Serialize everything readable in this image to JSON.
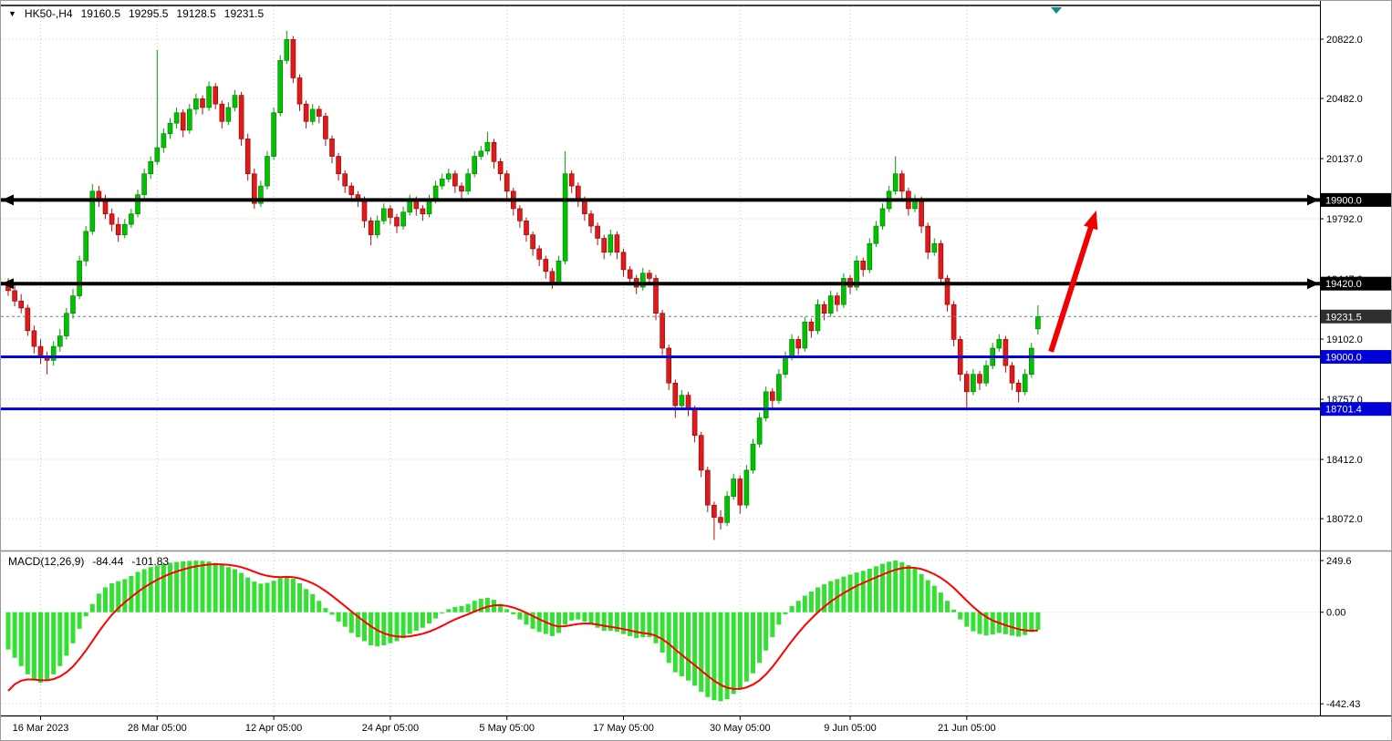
{
  "header": {
    "symbol": "HK50-,H4",
    "open": "19160.5",
    "high": "19295.5",
    "low": "19128.5",
    "close": "19231.5"
  },
  "indicator": {
    "name": "MACD(12,26,9)",
    "main_value": "-84.44",
    "signal_value": "-101.83"
  },
  "colors": {
    "up_candle": "#00C200",
    "up_border": "#007700",
    "down_candle": "#DE1A1A",
    "down_border": "#8E0000",
    "wick_up": "#00A000",
    "wick_down": "#B01010",
    "macd_histogram": "#33E033",
    "macd_signal": "#FF0000",
    "grid": "#C9C9C9",
    "axis_text": "#000000",
    "frame": "#000000",
    "splitter": "#8C8C8C",
    "blue_line": "#0000D8",
    "black_line": "#000000",
    "current_price_line": "#777777",
    "current_price_tag_bg": "#2F2F2F",
    "trend_arrow": "#F00000",
    "shift_marker": "#0E8C8C",
    "tag_text": "#FFFFFF"
  },
  "chart_data": [
    {
      "type": "candlestick",
      "title": "HK50-,H4",
      "ylim": [
        17900,
        21010
      ],
      "y_ticks": [
        "20822.0",
        "20482.0",
        "20137.0",
        "19792.0",
        "19447.0",
        "19102.0",
        "18757.0",
        "18412.0",
        "18072.0"
      ],
      "x_ticks": [
        {
          "i": 5,
          "label": "16 Mar 2023"
        },
        {
          "i": 23,
          "label": "28 Mar 05:00"
        },
        {
          "i": 41,
          "label": "12 Apr 05:00"
        },
        {
          "i": 59,
          "label": "24 Apr 05:00"
        },
        {
          "i": 77,
          "label": "5 May 05:00"
        },
        {
          "i": 95,
          "label": "17 May 05:00"
        },
        {
          "i": 113,
          "label": "30 May 05:00"
        },
        {
          "i": 130,
          "label": "9 Jun 05:00"
        },
        {
          "i": 148,
          "label": "21 Jun 05:00"
        }
      ],
      "hlines": [
        {
          "price": 19900.0,
          "label": "19900.0",
          "kind": "black",
          "width": 4,
          "arrows": true
        },
        {
          "price": 19420.0,
          "label": "19420.0",
          "kind": "black",
          "width": 4,
          "arrows": true
        },
        {
          "price": 19000.0,
          "label": "19000.0",
          "kind": "blue",
          "width": 3,
          "arrows": false
        },
        {
          "price": 18701.4,
          "label": "18701.4",
          "kind": "blue",
          "width": 3,
          "arrows": false
        },
        {
          "price": 19231.5,
          "label": "19231.5",
          "kind": "current",
          "width": 1,
          "arrows": false
        }
      ],
      "trend_arrow": {
        "from": {
          "i": 161,
          "price": 19030
        },
        "to": {
          "i": 168,
          "price": 19840
        },
        "width": 6
      },
      "ohlc": [
        [
          19420,
          19450,
          19350,
          19380
        ],
        [
          19380,
          19410,
          19290,
          19320
        ],
        [
          19320,
          19360,
          19250,
          19280
        ],
        [
          19280,
          19300,
          19120,
          19150
        ],
        [
          19150,
          19180,
          19020,
          19060
        ],
        [
          19060,
          19100,
          18960,
          19000
        ],
        [
          19000,
          19030,
          18900,
          18980
        ],
        [
          18980,
          19090,
          18950,
          19060
        ],
        [
          19060,
          19160,
          19030,
          19120
        ],
        [
          19120,
          19280,
          19100,
          19250
        ],
        [
          19250,
          19390,
          19220,
          19350
        ],
        [
          19350,
          19580,
          19330,
          19550
        ],
        [
          19550,
          19750,
          19520,
          19720
        ],
        [
          19720,
          19990,
          19700,
          19950
        ],
        [
          19950,
          19980,
          19860,
          19900
        ],
        [
          19900,
          19930,
          19790,
          19820
        ],
        [
          19820,
          19850,
          19720,
          19760
        ],
        [
          19760,
          19800,
          19660,
          19700
        ],
        [
          19700,
          19790,
          19680,
          19760
        ],
        [
          19760,
          19850,
          19740,
          19820
        ],
        [
          19820,
          19960,
          19800,
          19930
        ],
        [
          19930,
          20080,
          19910,
          20050
        ],
        [
          20050,
          20150,
          20020,
          20120
        ],
        [
          20120,
          20760,
          20100,
          20200
        ],
        [
          20200,
          20310,
          20170,
          20280
        ],
        [
          20280,
          20370,
          20250,
          20340
        ],
        [
          20340,
          20430,
          20310,
          20400
        ],
        [
          20400,
          20420,
          20260,
          20300
        ],
        [
          20300,
          20450,
          20280,
          20420
        ],
        [
          20420,
          20510,
          20390,
          20480
        ],
        [
          20480,
          20500,
          20390,
          20430
        ],
        [
          20430,
          20580,
          20410,
          20550
        ],
        [
          20550,
          20570,
          20420,
          20450
        ],
        [
          20450,
          20470,
          20310,
          20350
        ],
        [
          20350,
          20460,
          20330,
          20430
        ],
        [
          20430,
          20530,
          20410,
          20500
        ],
        [
          20500,
          20520,
          20210,
          20250
        ],
        [
          20250,
          20280,
          20010,
          20050
        ],
        [
          20050,
          20080,
          19850,
          19880
        ],
        [
          19880,
          20010,
          19860,
          19980
        ],
        [
          19980,
          20180,
          19960,
          20150
        ],
        [
          20150,
          20430,
          20130,
          20400
        ],
        [
          20400,
          20730,
          20380,
          20700
        ],
        [
          20700,
          20870,
          20680,
          20820
        ],
        [
          20820,
          20840,
          20570,
          20600
        ],
        [
          20600,
          20620,
          20410,
          20450
        ],
        [
          20450,
          20470,
          20310,
          20350
        ],
        [
          20350,
          20450,
          20330,
          20420
        ],
        [
          20420,
          20440,
          20340,
          20380
        ],
        [
          20380,
          20400,
          20210,
          20250
        ],
        [
          20250,
          20270,
          20110,
          20150
        ],
        [
          20150,
          20170,
          20010,
          20050
        ],
        [
          20050,
          20070,
          19940,
          19980
        ],
        [
          19980,
          20000,
          19890,
          19930
        ],
        [
          19930,
          19950,
          19860,
          19900
        ],
        [
          19900,
          19920,
          19740,
          19780
        ],
        [
          19780,
          19800,
          19640,
          19700
        ],
        [
          19700,
          19810,
          19680,
          19780
        ],
        [
          19780,
          19880,
          19760,
          19850
        ],
        [
          19850,
          19870,
          19760,
          19800
        ],
        [
          19800,
          19820,
          19710,
          19750
        ],
        [
          19750,
          19860,
          19730,
          19830
        ],
        [
          19830,
          19930,
          19810,
          19900
        ],
        [
          19900,
          19920,
          19810,
          19850
        ],
        [
          19850,
          19870,
          19780,
          19820
        ],
        [
          19820,
          19930,
          19800,
          19900
        ],
        [
          19900,
          20010,
          19880,
          19980
        ],
        [
          19980,
          20050,
          19960,
          20020
        ],
        [
          20020,
          20080,
          20000,
          20050
        ],
        [
          20050,
          20070,
          19940,
          19980
        ],
        [
          19980,
          20000,
          19910,
          19950
        ],
        [
          19950,
          20080,
          19930,
          20050
        ],
        [
          20050,
          20180,
          20030,
          20150
        ],
        [
          20150,
          20210,
          20130,
          20180
        ],
        [
          20180,
          20290,
          20160,
          20230
        ],
        [
          20230,
          20250,
          20080,
          20120
        ],
        [
          20120,
          20140,
          20010,
          20050
        ],
        [
          20050,
          20070,
          19910,
          19950
        ],
        [
          19950,
          19970,
          19810,
          19850
        ],
        [
          19850,
          19870,
          19740,
          19780
        ],
        [
          19780,
          19800,
          19660,
          19700
        ],
        [
          19700,
          19720,
          19580,
          19620
        ],
        [
          19620,
          19640,
          19520,
          19560
        ],
        [
          19560,
          19580,
          19450,
          19490
        ],
        [
          19490,
          19510,
          19390,
          19430
        ],
        [
          19430,
          19580,
          19410,
          19550
        ],
        [
          19550,
          20180,
          19530,
          20050
        ],
        [
          20050,
          20070,
          19940,
          19980
        ],
        [
          19980,
          20000,
          19860,
          19900
        ],
        [
          19900,
          19920,
          19780,
          19820
        ],
        [
          19820,
          19840,
          19710,
          19750
        ],
        [
          19750,
          19770,
          19640,
          19680
        ],
        [
          19680,
          19700,
          19560,
          19600
        ],
        [
          19600,
          19730,
          19580,
          19700
        ],
        [
          19700,
          19720,
          19560,
          19600
        ],
        [
          19600,
          19620,
          19460,
          19500
        ],
        [
          19500,
          19520,
          19410,
          19450
        ],
        [
          19450,
          19470,
          19360,
          19400
        ],
        [
          19400,
          19510,
          19380,
          19480
        ],
        [
          19480,
          19500,
          19410,
          19450
        ],
        [
          19450,
          19470,
          19210,
          19250
        ],
        [
          19250,
          19270,
          19010,
          19050
        ],
        [
          19050,
          19070,
          18810,
          18850
        ],
        [
          18850,
          18870,
          18650,
          18720
        ],
        [
          18720,
          18810,
          18700,
          18780
        ],
        [
          18780,
          18800,
          18660,
          18700
        ],
        [
          18700,
          18720,
          18510,
          18550
        ],
        [
          18550,
          18570,
          18310,
          18350
        ],
        [
          18350,
          18370,
          18110,
          18150
        ],
        [
          18150,
          18170,
          17950,
          18080
        ],
        [
          18080,
          18120,
          18010,
          18050
        ],
        [
          18050,
          18230,
          18030,
          18200
        ],
        [
          18200,
          18330,
          18180,
          18300
        ],
        [
          18300,
          18320,
          18100,
          18150
        ],
        [
          18150,
          18380,
          18130,
          18350
        ],
        [
          18350,
          18530,
          18330,
          18500
        ],
        [
          18500,
          18680,
          18480,
          18650
        ],
        [
          18650,
          18830,
          18630,
          18800
        ],
        [
          18800,
          18820,
          18710,
          18750
        ],
        [
          18750,
          18930,
          18730,
          18900
        ],
        [
          18900,
          19030,
          18880,
          19000
        ],
        [
          19000,
          19130,
          18980,
          19100
        ],
        [
          19100,
          19120,
          19010,
          19050
        ],
        [
          19050,
          19230,
          19030,
          19200
        ],
        [
          19200,
          19220,
          19110,
          19150
        ],
        [
          19150,
          19330,
          19130,
          19300
        ],
        [
          19300,
          19320,
          19210,
          19250
        ],
        [
          19250,
          19380,
          19230,
          19350
        ],
        [
          19350,
          19370,
          19260,
          19300
        ],
        [
          19300,
          19480,
          19280,
          19450
        ],
        [
          19450,
          19470,
          19360,
          19400
        ],
        [
          19400,
          19580,
          19380,
          19550
        ],
        [
          19550,
          19570,
          19460,
          19500
        ],
        [
          19500,
          19680,
          19480,
          19650
        ],
        [
          19650,
          19780,
          19630,
          19750
        ],
        [
          19750,
          19880,
          19730,
          19850
        ],
        [
          19850,
          19980,
          19830,
          19950
        ],
        [
          19950,
          20150,
          19930,
          20050
        ],
        [
          20050,
          20070,
          19910,
          19950
        ],
        [
          19950,
          19970,
          19810,
          19850
        ],
        [
          19850,
          19930,
          19830,
          19900
        ],
        [
          19900,
          19920,
          19710,
          19750
        ],
        [
          19750,
          19770,
          19560,
          19600
        ],
        [
          19600,
          19680,
          19580,
          19650
        ],
        [
          19650,
          19670,
          19410,
          19450
        ],
        [
          19450,
          19470,
          19260,
          19300
        ],
        [
          19300,
          19320,
          19060,
          19100
        ],
        [
          19100,
          19120,
          18860,
          18900
        ],
        [
          18900,
          18920,
          18700,
          18800
        ],
        [
          18800,
          18930,
          18780,
          18900
        ],
        [
          18900,
          18920,
          18810,
          18850
        ],
        [
          18850,
          18980,
          18830,
          18950
        ],
        [
          18950,
          19080,
          18930,
          19050
        ],
        [
          19050,
          19130,
          19030,
          19100
        ],
        [
          19100,
          19120,
          18910,
          18950
        ],
        [
          18950,
          18970,
          18810,
          18850
        ],
        [
          18850,
          18870,
          18740,
          18800
        ],
        [
          18800,
          18930,
          18780,
          18900
        ],
        [
          18900,
          19080,
          18880,
          19050
        ],
        [
          19160.5,
          19295.5,
          19128.5,
          19231.5
        ]
      ]
    },
    {
      "type": "bar",
      "name": "MACD(12,26,9)",
      "ylim": [
        -490,
        285
      ],
      "y_ticks": [
        "249.6",
        "0.00",
        "-442.43"
      ],
      "signal_start": -430,
      "signal_period": 9,
      "values": [
        -180,
        -220,
        -260,
        -300,
        -330,
        -340,
        -330,
        -300,
        -260,
        -210,
        -150,
        -80,
        -20,
        40,
        90,
        120,
        140,
        150,
        160,
        175,
        195,
        208,
        218,
        226,
        233,
        239,
        243,
        246,
        248,
        249,
        248,
        245,
        238,
        228,
        218,
        208,
        190,
        168,
        148,
        138,
        142,
        152,
        165,
        175,
        162,
        140,
        112,
        88,
        55,
        20,
        -12,
        -45,
        -70,
        -100,
        -120,
        -140,
        -160,
        -165,
        -160,
        -150,
        -140,
        -125,
        -105,
        -90,
        -75,
        -55,
        -30,
        -5,
        15,
        25,
        30,
        40,
        55,
        65,
        70,
        60,
        40,
        15,
        -10,
        -35,
        -60,
        -80,
        -95,
        -105,
        -115,
        -100,
        -60,
        -40,
        -35,
        -45,
        -60,
        -75,
        -90,
        -90,
        -95,
        -105,
        -115,
        -125,
        -120,
        -120,
        -150,
        -195,
        -245,
        -290,
        -310,
        -330,
        -355,
        -385,
        -410,
        -425,
        -430,
        -420,
        -395,
        -370,
        -335,
        -295,
        -245,
        -185,
        -120,
        -60,
        -10,
        30,
        55,
        80,
        100,
        120,
        135,
        150,
        160,
        172,
        182,
        192,
        200,
        210,
        222,
        234,
        244,
        250,
        242,
        228,
        210,
        185,
        155,
        128,
        95,
        55,
        12,
        -35,
        -70,
        -92,
        -105,
        -112,
        -108,
        -100,
        -106,
        -113,
        -118,
        -110,
        -96,
        -84.44
      ]
    }
  ]
}
